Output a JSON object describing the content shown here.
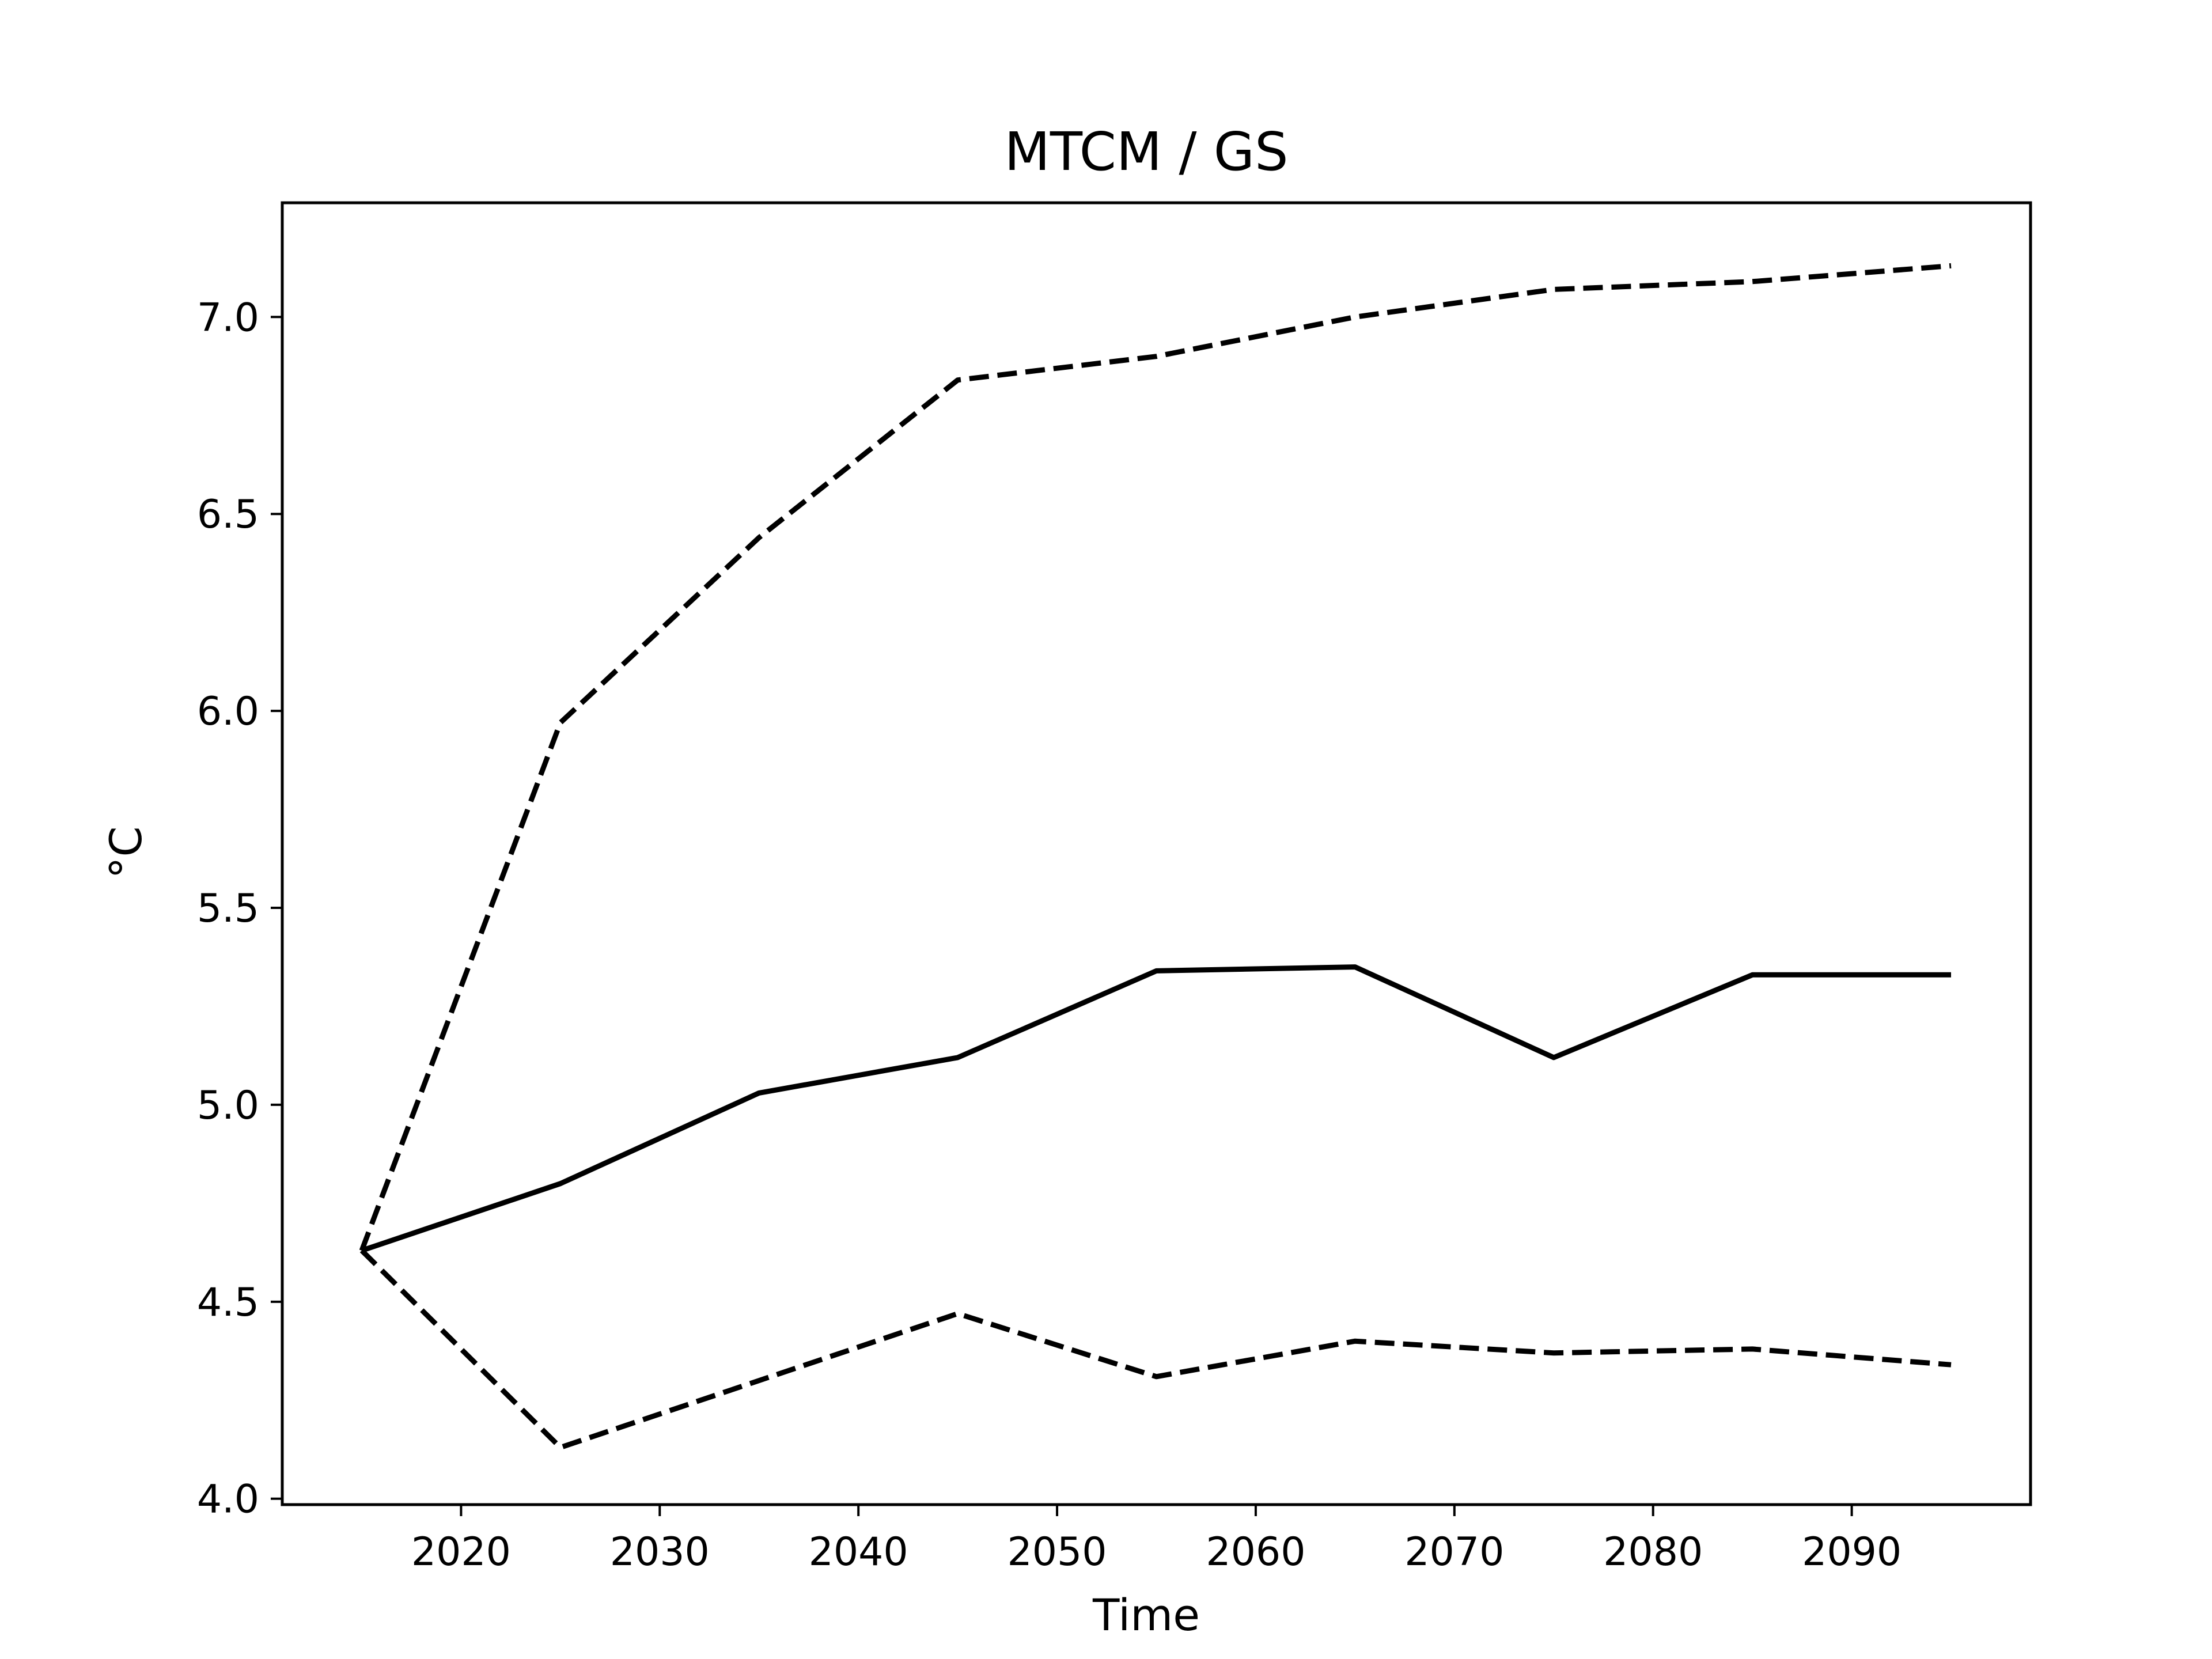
{
  "chart_data": {
    "type": "line",
    "title": "MTCM / GS",
    "xlabel": "Time",
    "ylabel": "°C",
    "xlim": [
      2011,
      2099
    ],
    "ylim": [
      3.985,
      7.29
    ],
    "xticks": [
      2020,
      2030,
      2040,
      2050,
      2060,
      2070,
      2080,
      2090
    ],
    "yticks": [
      4.0,
      4.5,
      5.0,
      5.5,
      6.0,
      6.5,
      7.0
    ],
    "ytick_labels": [
      "4.0",
      "4.5",
      "5.0",
      "5.5",
      "6.0",
      "6.5",
      "7.0"
    ],
    "grid": false,
    "x": [
      2015,
      2025,
      2035,
      2045,
      2055,
      2065,
      2075,
      2085,
      2095
    ],
    "series": [
      {
        "style": "solid",
        "values": [
          4.63,
          4.8,
          5.03,
          5.12,
          5.34,
          5.35,
          5.12,
          5.33,
          5.33
        ]
      },
      {
        "style": "dashed",
        "values": [
          4.63,
          5.97,
          6.44,
          6.84,
          6.9,
          7.0,
          7.07,
          7.09,
          7.13
        ]
      },
      {
        "style": "dashed",
        "values": [
          4.63,
          4.13,
          4.3,
          4.47,
          4.31,
          4.4,
          4.37,
          4.38,
          4.34
        ]
      }
    ],
    "colors": {
      "line": "#000000",
      "axes": "#000000",
      "background": "#ffffff"
    }
  }
}
